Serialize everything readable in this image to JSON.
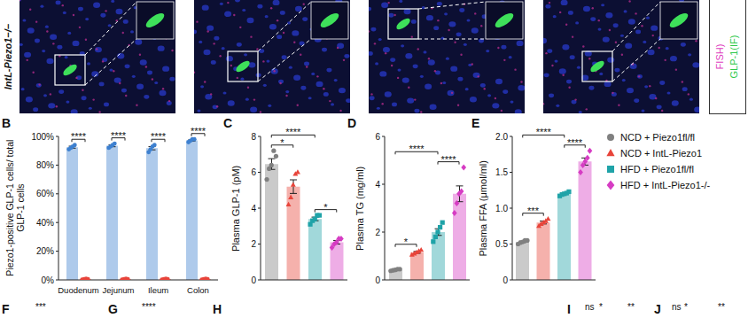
{
  "figure": {
    "image_row": {
      "label": "IntL-Piezo1−/−",
      "stains": [
        {
          "text": "FISH)",
          "color": "#e040c0"
        },
        {
          "text": "GLP-1(IF)",
          "color": "#2ec84a"
        }
      ]
    },
    "groups": [
      {
        "name": "NCD + Piezo1fl/fl",
        "color": "#808080",
        "marker": "circle"
      },
      {
        "name": "NCD + IntL-Piezo1",
        "color": "#e8443a",
        "marker": "triangle"
      },
      {
        "name": "HFD + Piezo1fl/fl",
        "color": "#1fa3a8",
        "marker": "square"
      },
      {
        "name": "HFD + IntL-Piezo1-/-",
        "color": "#d63cc3",
        "marker": "diamond"
      }
    ],
    "bottom_panels": [
      {
        "letter": "F",
        "annotations": [
          "***"
        ]
      },
      {
        "letter": "G",
        "annotations": [
          "****"
        ]
      },
      {
        "letter": "H"
      },
      {
        "letter": "I",
        "annotations": [
          "ns",
          "*",
          "**"
        ]
      },
      {
        "letter": "J",
        "annotations": [
          "ns",
          "*",
          "**"
        ]
      }
    ]
  },
  "chart_data": [
    {
      "panel": "B",
      "type": "bar",
      "y_label": "Piezo1-positive GLP-1 cells/ total GLP-1 cells",
      "categories": [
        "Duodenum",
        "Jejunum",
        "Ileum",
        "Colon"
      ],
      "ylim": [
        0,
        100
      ],
      "yticks": [
        {
          "value": 0,
          "label": "0%"
        },
        {
          "value": 20,
          "label": "20%"
        },
        {
          "value": 40,
          "label": "40%"
        },
        {
          "value": 60,
          "label": "60%"
        },
        {
          "value": 80,
          "label": "80%"
        },
        {
          "value": 100,
          "label": "100%"
        }
      ],
      "grid": false,
      "series": [
        {
          "color": "#3d80d0",
          "marker": "circle",
          "values": [
            92.5,
            93.5,
            91.75,
            97.25
          ],
          "errors": [
            0.7,
            0.7,
            1.1,
            0.5
          ],
          "points": [
            [
              91,
              92,
              93,
              94
            ],
            [
              92,
              93,
              94,
              95
            ],
            [
              89,
              91,
              93,
              94
            ],
            [
              96,
              97,
              98,
              98
            ]
          ]
        },
        {
          "color": "#e8443a",
          "marker": "circle",
          "values": [
            0.5,
            0.5,
            0.5,
            0.5
          ],
          "errors": [
            0.2,
            0.2,
            0.2,
            0.2
          ],
          "points": [
            [
              0.2,
              0.5,
              0.8,
              0.5
            ],
            [
              0.2,
              0.5,
              0.8,
              0.5
            ],
            [
              0.2,
              0.5,
              0.8,
              0.5
            ],
            [
              0.2,
              0.5,
              0.8,
              0.5
            ]
          ]
        }
      ],
      "significance": [
        {
          "category": "Duodenum",
          "label": "****"
        },
        {
          "category": "Jejunum",
          "label": "****"
        },
        {
          "category": "Ileum",
          "label": "****"
        },
        {
          "category": "Colon",
          "label": "****"
        }
      ]
    },
    {
      "panel": "C",
      "type": "bar",
      "y_label": "Plasma GLP-1 (pM)",
      "categories": [
        "NCD + Piezo1fl/fl",
        "NCD + IntL-Piezo1",
        "HFD + Piezo1fl/fl",
        "HFD + IntL-Piezo1-/-"
      ],
      "tick_labels": "y",
      "ylim": [
        0,
        8
      ],
      "yticks": [
        0,
        2,
        4,
        6,
        8
      ],
      "grid": false,
      "values": [
        6.46,
        5.2,
        3.4,
        2.1
      ],
      "errors": [
        0.3,
        0.38,
        0.1,
        0.1
      ],
      "points": [
        [
          5.6,
          6.2,
          6.4,
          7.2,
          6.9
        ],
        [
          4.2,
          4.6,
          5.3,
          5.9,
          6.0
        ],
        [
          3.1,
          3.3,
          3.4,
          3.6,
          3.6
        ],
        [
          1.8,
          2.0,
          2.1,
          2.3,
          2.3
        ]
      ],
      "significance": [
        {
          "between": [
            "NCD + Piezo1fl/fl",
            "NCD + IntL-Piezo1"
          ],
          "label": "*"
        },
        {
          "between": [
            "NCD + Piezo1fl/fl",
            "HFD + Piezo1fl/fl"
          ],
          "label": "****"
        },
        {
          "between": [
            "HFD + Piezo1fl/fl",
            "HFD + IntL-Piezo1-/-"
          ],
          "label": "*"
        }
      ]
    },
    {
      "panel": "D",
      "type": "bar",
      "y_label": "Plasma TG (mg/ml)",
      "categories": [
        "NCD + Piezo1fl/fl",
        "NCD + IntL-Piezo1",
        "HFD + Piezo1fl/fl",
        "HFD + IntL-Piezo1-/-"
      ],
      "tick_labels": "y",
      "ylim": [
        0,
        6
      ],
      "yticks": [
        0,
        2,
        4,
        6
      ],
      "grid": false,
      "values": [
        0.42,
        1.15,
        2.0,
        3.6
      ],
      "errors": [
        0.03,
        0.04,
        0.14,
        0.33
      ],
      "points": [
        [
          0.38,
          0.4,
          0.42,
          0.45,
          0.45
        ],
        [
          1.05,
          1.1,
          1.15,
          1.2,
          1.25
        ],
        [
          1.6,
          1.8,
          2.0,
          2.2,
          2.4
        ],
        [
          2.8,
          3.2,
          3.6,
          3.7,
          4.7
        ]
      ],
      "significance": [
        {
          "between": [
            "NCD + Piezo1fl/fl",
            "NCD + IntL-Piezo1"
          ],
          "label": "*"
        },
        {
          "between": [
            "NCD + Piezo1fl/fl",
            "HFD + Piezo1fl/fl"
          ],
          "label": "****"
        },
        {
          "between": [
            "HFD + Piezo1fl/fl",
            "HFD + IntL-Piezo1-/-"
          ],
          "label": "****"
        }
      ]
    },
    {
      "panel": "E",
      "type": "bar",
      "y_label": "Plasma FFA (μmol/ml)",
      "categories": [
        "NCD + Piezo1fl/fl",
        "NCD + IntL-Piezo1",
        "HFD + Piezo1fl/fl",
        "HFD + IntL-Piezo1-/-"
      ],
      "tick_labels": "y",
      "ylim": [
        0,
        2
      ],
      "yticks": [
        0,
        0.5,
        {
          "value": 1,
          "label": "1.0"
        },
        1.5,
        {
          "value": 2,
          "label": "2.0"
        }
      ],
      "grid": false,
      "values": [
        0.53,
        0.8,
        1.2,
        1.65
      ],
      "errors": [
        0.01,
        0.02,
        0.01,
        0.05
      ],
      "points": [
        [
          0.5,
          0.52,
          0.53,
          0.55,
          0.55
        ],
        [
          0.75,
          0.78,
          0.8,
          0.82,
          0.85
        ],
        [
          1.17,
          1.19,
          1.2,
          1.21,
          1.23
        ],
        [
          1.5,
          1.6,
          1.65,
          1.7,
          1.8
        ]
      ],
      "significance": [
        {
          "between": [
            "NCD + Piezo1fl/fl",
            "NCD + IntL-Piezo1"
          ],
          "label": "***"
        },
        {
          "between": [
            "NCD + Piezo1fl/fl",
            "HFD + Piezo1fl/fl"
          ],
          "label": "****"
        },
        {
          "between": [
            "HFD + Piezo1fl/fl",
            "HFD + IntL-Piezo1-/-"
          ],
          "label": "****"
        }
      ]
    }
  ]
}
